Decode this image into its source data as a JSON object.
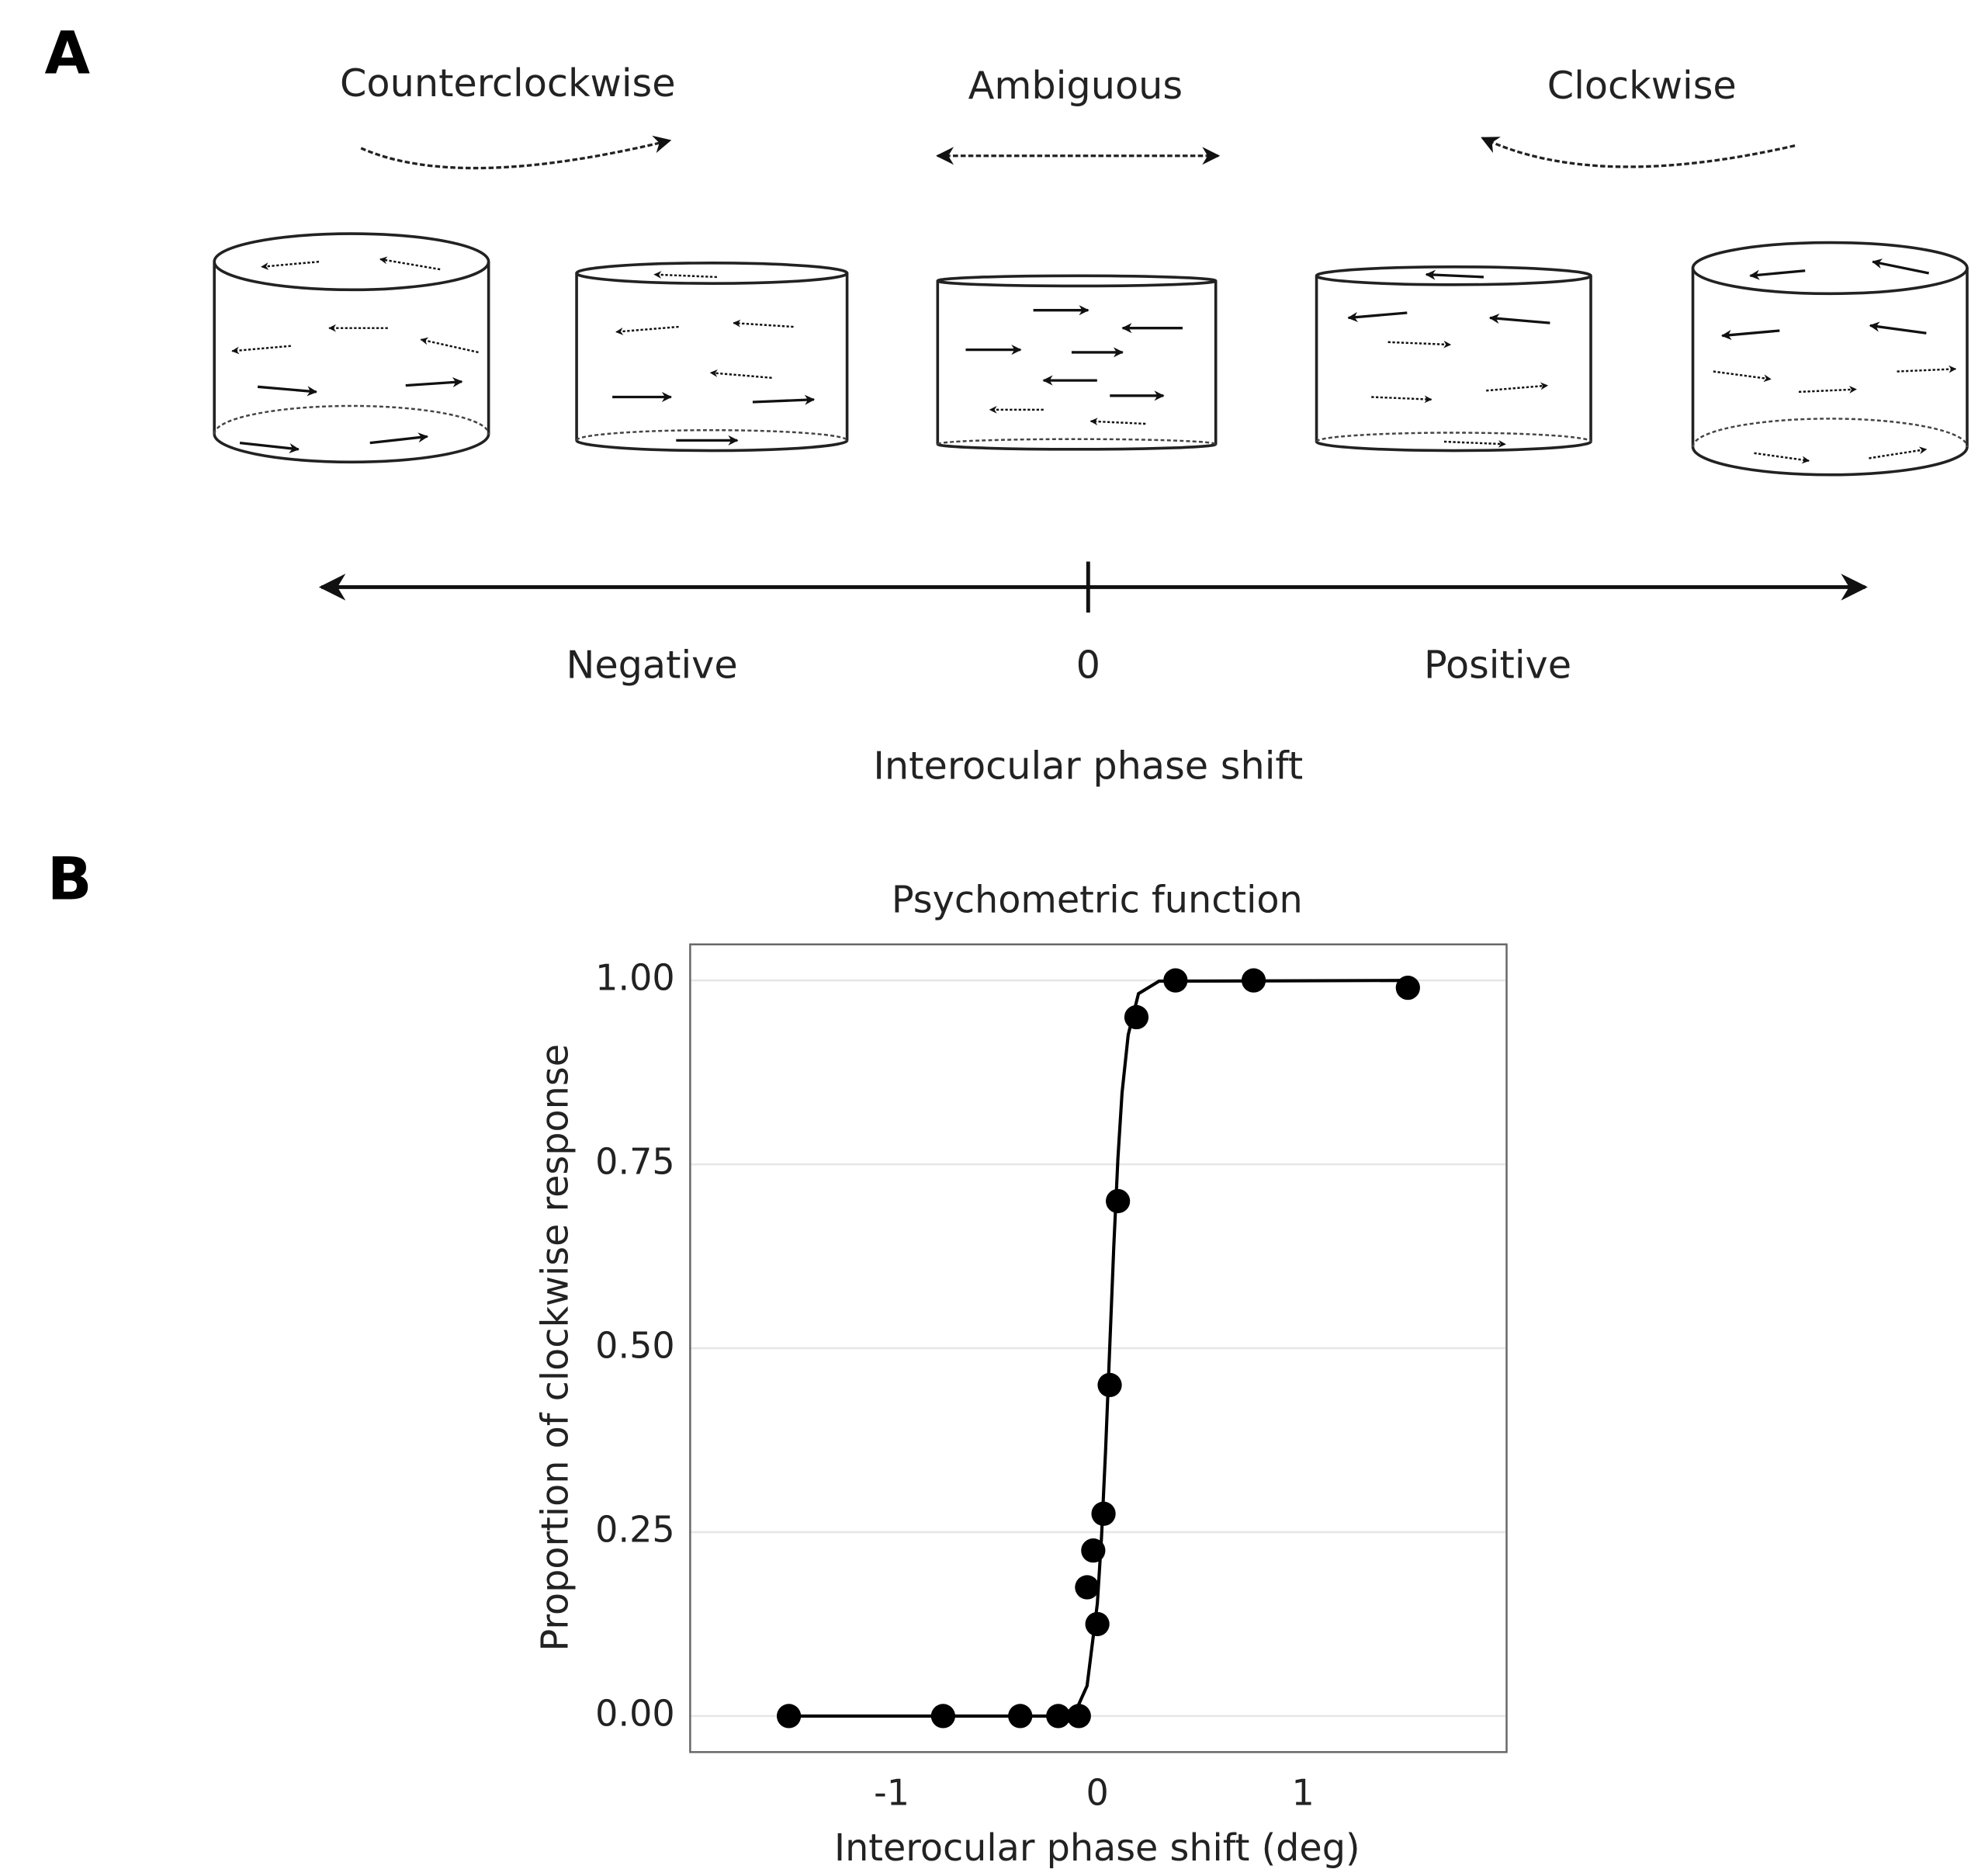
{
  "panel_a": {
    "label": "A",
    "top_labels": [
      "Counterclockwise",
      "Ambiguous",
      "Clockwise"
    ],
    "axis_labels": [
      "Negative",
      "0",
      "Positive"
    ],
    "axis_title": "Interocular phase shift"
  },
  "panel_b": {
    "label": "B"
  },
  "chart_data": {
    "type": "scatter",
    "title": "Psychometric function",
    "x_label": "Interocular phase shift (deg)",
    "y_label": "Proportion of clockwise response",
    "series": [
      {
        "color": "#000000",
        "x": [
          -1.5,
          -0.75,
          -0.375,
          -0.19,
          -0.09,
          -0.05,
          -0.02,
          0.0,
          0.03,
          0.06,
          0.1,
          0.19,
          0.38,
          0.76,
          1.51
        ],
        "values": [
          0,
          0,
          0,
          0,
          0,
          0.175,
          0.225,
          0.125,
          0.275,
          0.45,
          0.7,
          0.95,
          1.0,
          1.0,
          0.99
        ]
      },
      {
        "type": "line",
        "color": "#000000",
        "x": [
          -1.5,
          -0.2,
          -0.1,
          -0.05,
          0,
          0.02,
          0.04,
          0.06,
          0.08,
          0.1,
          0.12,
          0.15,
          0.2,
          0.3,
          1.5
        ],
        "values": [
          0,
          0,
          0.01,
          0.041,
          0.153,
          0.242,
          0.361,
          0.5,
          0.639,
          0.758,
          0.847,
          0.926,
          0.982,
          0.999,
          1
        ]
      }
    ],
    "xlim": [
      -1.98,
      1.99
    ],
    "ylim": [
      -0.049,
      1.049
    ],
    "xticks": [
      -1,
      0,
      1
    ],
    "yticks": [
      {
        "value": 0,
        "label": "0.00"
      },
      {
        "value": 0.25,
        "label": "0.25"
      },
      {
        "value": 0.5,
        "label": "0.50"
      },
      {
        "value": 0.75,
        "label": "0.75"
      },
      {
        "value": 1,
        "label": "1.00"
      }
    ],
    "grid": true
  }
}
